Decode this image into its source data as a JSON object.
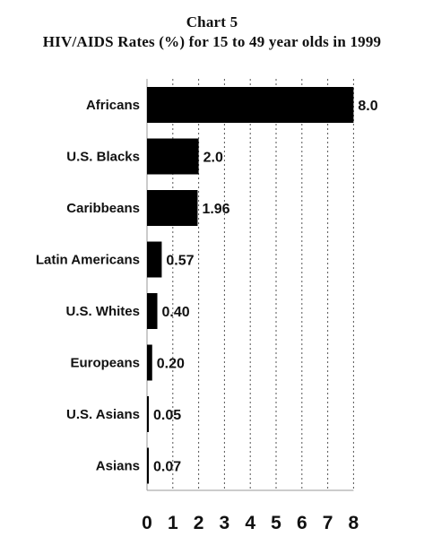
{
  "chart_data": {
    "type": "bar",
    "orientation": "horizontal",
    "title": "Chart 5",
    "subtitle": "HIV/AIDS Rates (%) for 15 to 49 year olds in 1999",
    "categories": [
      "Africans",
      "U.S. Blacks",
      "Caribbeans",
      "Latin Americans",
      "U.S. Whites",
      "Europeans",
      "U.S. Asians",
      "Asians"
    ],
    "values": [
      8.0,
      2.0,
      1.96,
      0.57,
      0.4,
      0.2,
      0.05,
      0.07
    ],
    "value_labels": [
      "8.0",
      "2.0",
      "1.96",
      "0.57",
      "0.40",
      "0.20",
      "0.05",
      "0.07"
    ],
    "xlim": [
      0,
      8
    ],
    "x_ticks": [
      "0",
      "1",
      "2",
      "3",
      "4",
      "5",
      "6",
      "7",
      "8"
    ],
    "grid": "vertical dashed",
    "bar_color": "#000000"
  }
}
